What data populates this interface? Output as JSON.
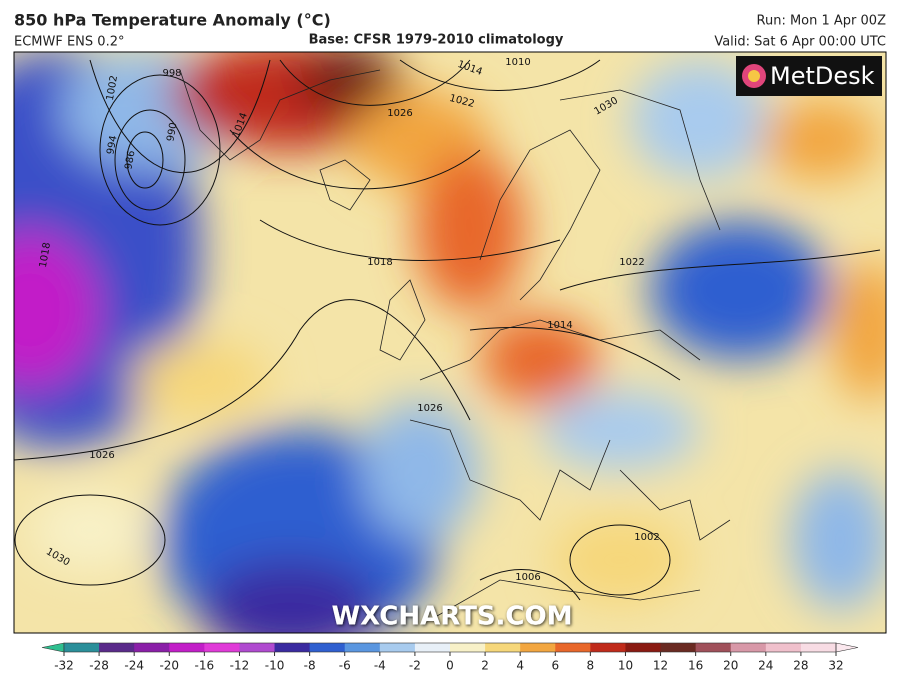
{
  "header": {
    "title": "850 hPa Temperature Anomaly (°C)",
    "model": "ECMWF ENS 0.2°",
    "base": "Base: CFSR 1979-2010 climatology",
    "run": "Run: Mon 1 Apr 00Z",
    "valid": "Valid: Sat 6 Apr 00:00 UTC"
  },
  "logo": "MetDesk",
  "watermark": "WXCHARTS.COM",
  "isobar_labels": [
    "998",
    "1002",
    "994",
    "990",
    "986",
    "1014",
    "1010",
    "1014",
    "1022",
    "1026",
    "1030",
    "1018",
    "1018",
    "1022",
    "1014",
    "1026",
    "1026",
    "1030",
    "1002",
    "1006"
  ],
  "colorbar": {
    "ticks": [
      -32,
      -28,
      -24,
      -20,
      -16,
      -12,
      -10,
      -8,
      -6,
      -4,
      -2,
      0,
      2,
      4,
      6,
      8,
      10,
      12,
      16,
      20,
      24,
      28,
      32
    ],
    "colors": [
      "#2fbf8f",
      "#2a8f9a",
      "#5a2a8a",
      "#8a1fa8",
      "#c21ec8",
      "#e03ad8",
      "#b04ad0",
      "#3a2aa0",
      "#2f5fd0",
      "#5a96e0",
      "#a8cbee",
      "#e8f0f8",
      "#f8f1c8",
      "#f6d77a",
      "#f2a640",
      "#e8672a",
      "#c02a1a",
      "#8a1a12",
      "#6a2a22",
      "#a0505a",
      "#d898a8",
      "#f0c0cc",
      "#f8dce4",
      "#fbe8ee"
    ]
  }
}
